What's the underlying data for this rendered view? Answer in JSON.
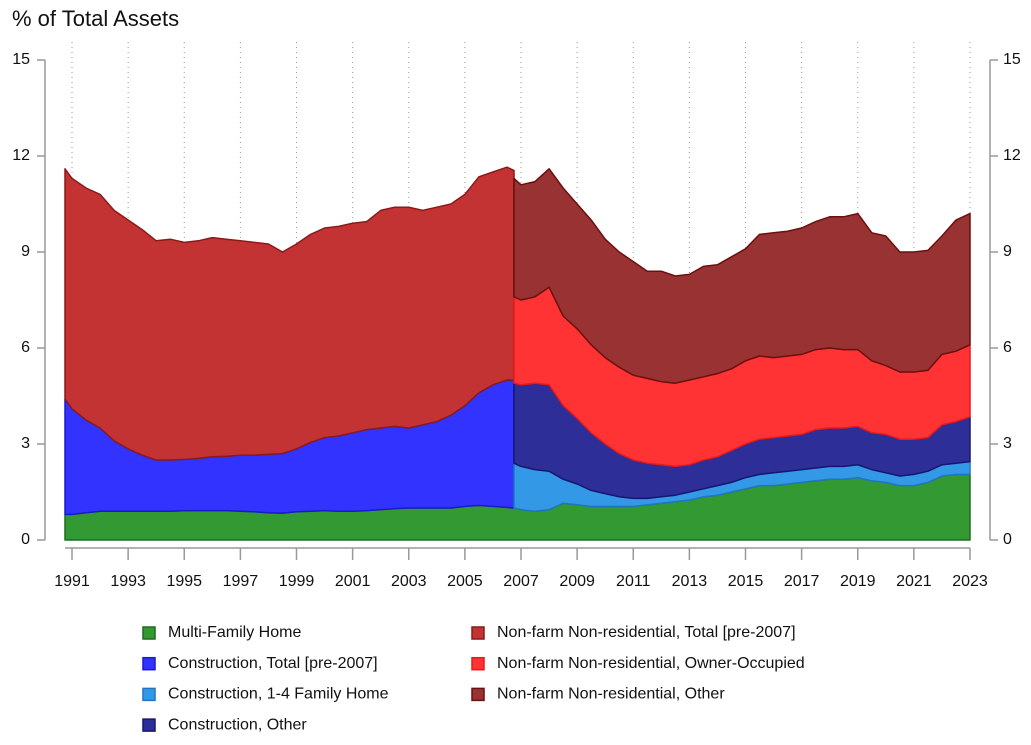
{
  "chart_data": {
    "type": "stacked_area",
    "ylabel": "% of Total Assets",
    "x": [
      1990.75,
      1991,
      1991.5,
      1992,
      1992.5,
      1993,
      1993.5,
      1994,
      1994.5,
      1995,
      1995.5,
      1996,
      1996.5,
      1997,
      1997.5,
      1998,
      1998.5,
      1999,
      1999.5,
      2000,
      2000.5,
      2001,
      2001.5,
      2002,
      2002.5,
      2003,
      2003.5,
      2004,
      2004.5,
      2005,
      2005.5,
      2006,
      2006.5,
      2006.75,
      2006.75,
      2007,
      2007.5,
      2008,
      2008.5,
      2009,
      2009.5,
      2010,
      2010.5,
      2011,
      2011.5,
      2012,
      2012.5,
      2013,
      2013.5,
      2014,
      2014.5,
      2015,
      2015.5,
      2016,
      2016.5,
      2017,
      2017.5,
      2018,
      2018.5,
      2019,
      2019.5,
      2020,
      2020.5,
      2021,
      2021.5,
      2022,
      2022.5,
      2023
    ],
    "series": [
      {
        "name": "Multi-Family Home",
        "color": "#339933",
        "edge": "#1f6b1f",
        "values": [
          0.8,
          0.8,
          0.85,
          0.9,
          0.9,
          0.9,
          0.9,
          0.9,
          0.9,
          0.92,
          0.92,
          0.92,
          0.92,
          0.9,
          0.88,
          0.85,
          0.84,
          0.88,
          0.9,
          0.92,
          0.9,
          0.9,
          0.92,
          0.95,
          0.98,
          1.0,
          1.0,
          1.0,
          1.0,
          1.05,
          1.08,
          1.05,
          1.02,
          1.0,
          1.0,
          0.95,
          0.9,
          0.95,
          1.15,
          1.1,
          1.05,
          1.05,
          1.05,
          1.05,
          1.1,
          1.15,
          1.2,
          1.25,
          1.35,
          1.4,
          1.5,
          1.6,
          1.7,
          1.7,
          1.75,
          1.8,
          1.85,
          1.9,
          1.9,
          1.95,
          1.85,
          1.8,
          1.7,
          1.7,
          1.8,
          2.0,
          2.05,
          2.05
        ]
      },
      {
        "name": "Construction, Total [pre-2007]",
        "color": "#3333ff",
        "edge": "#1a1acc",
        "values": [
          3.6,
          3.3,
          2.9,
          2.6,
          2.2,
          1.95,
          1.75,
          1.6,
          1.6,
          1.6,
          1.63,
          1.68,
          1.7,
          1.75,
          1.77,
          1.83,
          1.86,
          1.97,
          2.15,
          2.28,
          2.35,
          2.45,
          2.53,
          2.55,
          2.57,
          2.5,
          2.6,
          2.7,
          2.9,
          3.15,
          3.52,
          3.8,
          3.98,
          4.0,
          null,
          null,
          null,
          null,
          null,
          null,
          null,
          null,
          null,
          null,
          null,
          null,
          null,
          null,
          null,
          null,
          null,
          null,
          null,
          null,
          null,
          null,
          null,
          null,
          null,
          null,
          null,
          null,
          null,
          null,
          null,
          null,
          null,
          null
        ]
      },
      {
        "name": "Construction, 1-4 Family Home",
        "color": "#3399e6",
        "edge": "#1f77c4",
        "values": [
          null,
          null,
          null,
          null,
          null,
          null,
          null,
          null,
          null,
          null,
          null,
          null,
          null,
          null,
          null,
          null,
          null,
          null,
          null,
          null,
          null,
          null,
          null,
          null,
          null,
          null,
          null,
          null,
          null,
          null,
          null,
          null,
          null,
          null,
          1.4,
          1.35,
          1.3,
          1.2,
          0.75,
          0.65,
          0.5,
          0.4,
          0.3,
          0.25,
          0.2,
          0.2,
          0.2,
          0.25,
          0.25,
          0.3,
          0.3,
          0.35,
          0.35,
          0.4,
          0.4,
          0.4,
          0.4,
          0.4,
          0.4,
          0.4,
          0.35,
          0.3,
          0.3,
          0.35,
          0.35,
          0.35,
          0.35,
          0.4
        ]
      },
      {
        "name": "Construction, Other",
        "color": "#2e2e99",
        "edge": "#161670",
        "values": [
          null,
          null,
          null,
          null,
          null,
          null,
          null,
          null,
          null,
          null,
          null,
          null,
          null,
          null,
          null,
          null,
          null,
          null,
          null,
          null,
          null,
          null,
          null,
          null,
          null,
          null,
          null,
          null,
          null,
          null,
          null,
          null,
          null,
          null,
          2.5,
          2.55,
          2.7,
          2.7,
          2.3,
          2.05,
          1.8,
          1.55,
          1.35,
          1.2,
          1.1,
          1.0,
          0.9,
          0.85,
          0.9,
          0.9,
          1.0,
          1.05,
          1.1,
          1.1,
          1.1,
          1.1,
          1.2,
          1.2,
          1.2,
          1.2,
          1.15,
          1.2,
          1.15,
          1.1,
          1.05,
          1.25,
          1.3,
          1.4
        ]
      },
      {
        "name": "Non-farm Non-residential, Total [pre-2007]",
        "color": "#c43333",
        "edge": "#8b1a1a",
        "values": [
          7.2,
          7.2,
          7.25,
          7.3,
          7.2,
          7.15,
          7.05,
          6.85,
          6.9,
          6.78,
          6.8,
          6.85,
          6.78,
          6.7,
          6.65,
          6.57,
          6.3,
          6.4,
          6.5,
          6.55,
          6.55,
          6.55,
          6.5,
          6.8,
          6.85,
          6.9,
          6.7,
          6.7,
          6.6,
          6.6,
          6.75,
          6.65,
          6.65,
          6.55,
          null,
          null,
          null,
          null,
          null,
          null,
          null,
          null,
          null,
          null,
          null,
          null,
          null,
          null,
          null,
          null,
          null,
          null,
          null,
          null,
          null,
          null,
          null,
          null,
          null,
          null,
          null,
          null,
          null,
          null,
          null,
          null,
          null,
          null
        ]
      },
      {
        "name": "Non-farm Non-residential, Owner-Occupied",
        "color": "#ff3333",
        "edge": "#e61a1a",
        "values": [
          null,
          null,
          null,
          null,
          null,
          null,
          null,
          null,
          null,
          null,
          null,
          null,
          null,
          null,
          null,
          null,
          null,
          null,
          null,
          null,
          null,
          null,
          null,
          null,
          null,
          null,
          null,
          null,
          null,
          null,
          null,
          null,
          null,
          null,
          2.7,
          2.65,
          2.7,
          3.05,
          2.8,
          2.8,
          2.75,
          2.7,
          2.7,
          2.65,
          2.65,
          2.6,
          2.6,
          2.65,
          2.6,
          2.6,
          2.55,
          2.6,
          2.6,
          2.5,
          2.5,
          2.5,
          2.5,
          2.5,
          2.45,
          2.4,
          2.25,
          2.15,
          2.1,
          2.1,
          2.1,
          2.2,
          2.2,
          2.25
        ]
      },
      {
        "name": "Non-farm Non-residential, Other",
        "color": "#993333",
        "edge": "#6b0f0f",
        "values": [
          null,
          null,
          null,
          null,
          null,
          null,
          null,
          null,
          null,
          null,
          null,
          null,
          null,
          null,
          null,
          null,
          null,
          null,
          null,
          null,
          null,
          null,
          null,
          null,
          null,
          null,
          null,
          null,
          null,
          null,
          null,
          null,
          null,
          null,
          3.7,
          3.6,
          3.6,
          3.7,
          4.0,
          3.9,
          3.9,
          3.7,
          3.6,
          3.55,
          3.35,
          3.45,
          3.35,
          3.3,
          3.45,
          3.4,
          3.5,
          3.5,
          3.8,
          3.9,
          3.9,
          3.95,
          4.0,
          4.1,
          4.15,
          4.25,
          4.0,
          4.05,
          3.75,
          3.75,
          3.75,
          3.7,
          4.1,
          4.1
        ]
      }
    ],
    "xlim": [
      1990.75,
      2023
    ],
    "xticks": [
      1991,
      1993,
      1995,
      1997,
      1999,
      2001,
      2003,
      2005,
      2007,
      2009,
      2011,
      2013,
      2015,
      2017,
      2019,
      2021,
      2023
    ],
    "ylim": [
      0,
      15
    ],
    "yticks": [
      0,
      3,
      6,
      9,
      12,
      15
    ],
    "y2lim": [
      0,
      15
    ],
    "y2ticks": [
      0,
      3,
      6,
      9,
      12,
      15
    ],
    "grid": true
  }
}
